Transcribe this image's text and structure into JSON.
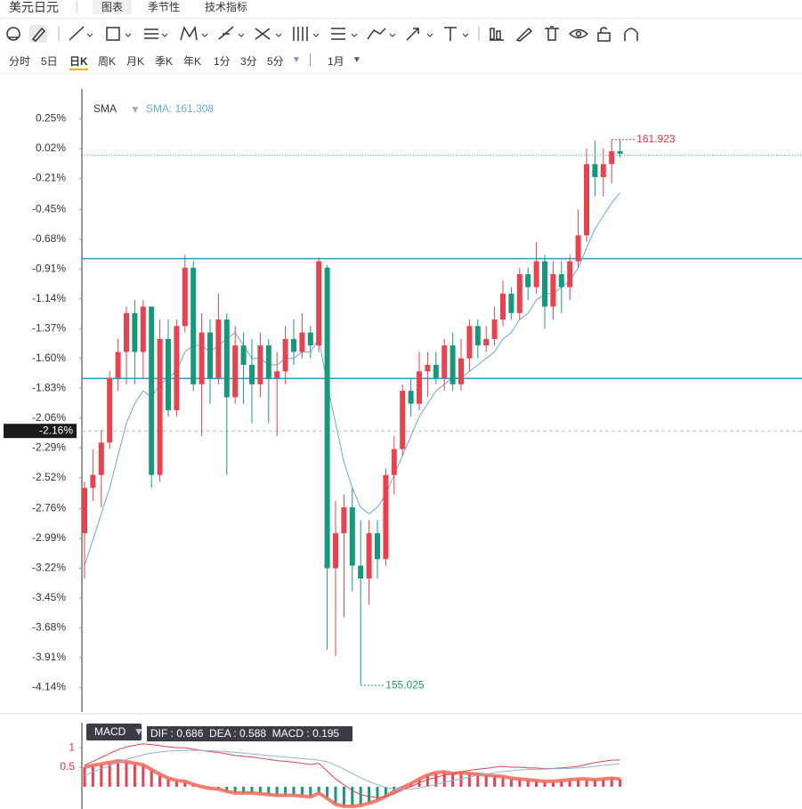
{
  "header": {
    "title": "美元日元",
    "tabs": [
      "图表",
      "季节性",
      "技术指标"
    ]
  },
  "periods": [
    "分时",
    "5日",
    "日K",
    "周K",
    "月K",
    "季K",
    "年K",
    "1分",
    "3分",
    "5分"
  ],
  "period_extra": "1月",
  "chart_data": [
    {
      "type": "candlestick",
      "legend_name": "SMA",
      "legend_value": "SMA: 161.308",
      "up_color": "#e8424e",
      "down_color": "#18987a",
      "open": [
        -2.95,
        -2.6,
        -2.5,
        -2.25,
        -1.75,
        -1.55,
        -1.25,
        -1.55,
        -1.2,
        -2.5,
        -1.45,
        -2.0,
        -1.35,
        -0.9,
        -1.8,
        -1.4,
        -1.75,
        -1.3,
        -1.9,
        -1.5,
        -1.65,
        -1.8,
        -1.5,
        -1.75,
        -1.7,
        -1.45,
        -1.55,
        -1.4,
        -1.5,
        -0.9,
        -3.22,
        -2.95,
        -2.75,
        -3.2,
        -3.3,
        -2.95,
        -3.15,
        -2.5,
        -2.3,
        -1.85,
        -1.95,
        -1.7,
        -1.65,
        -1.75,
        -1.5,
        -1.8,
        -1.6,
        -1.35,
        -1.5,
        -1.45,
        -1.3,
        -1.1,
        -1.25,
        -0.95,
        -1.05,
        -0.85,
        -1.2,
        -0.95,
        -1.05,
        -0.85,
        -0.65,
        -0.1,
        -0.2,
        -0.1,
        0.0
      ],
      "high": [
        -2.55,
        -2.3,
        -2.15,
        -1.7,
        -1.45,
        -1.2,
        -1.15,
        -1.15,
        -1.2,
        -1.3,
        -1.3,
        -1.3,
        -0.8,
        -0.85,
        -1.25,
        -1.3,
        -1.1,
        -1.25,
        -1.35,
        -1.4,
        -1.45,
        -1.4,
        -1.45,
        -1.55,
        -1.35,
        -1.3,
        -1.25,
        -1.35,
        -0.82,
        -0.88,
        -2.7,
        -2.65,
        -2.6,
        -2.85,
        -2.85,
        -2.85,
        -2.45,
        -2.2,
        -1.8,
        -1.75,
        -1.55,
        -1.55,
        -1.55,
        -1.45,
        -1.4,
        -1.45,
        -1.3,
        -1.3,
        -1.35,
        -1.2,
        -1.0,
        -1.05,
        -0.9,
        -0.9,
        -0.7,
        -0.8,
        -0.85,
        -0.85,
        -0.8,
        -0.45,
        0.02,
        0.08,
        0.02,
        0.09,
        0.09
      ],
      "low": [
        -3.3,
        -2.7,
        -2.75,
        -2.3,
        -1.85,
        -1.8,
        -1.8,
        -1.75,
        -2.6,
        -2.55,
        -2.05,
        -2.05,
        -1.4,
        -1.85,
        -2.2,
        -1.95,
        -1.8,
        -2.5,
        -1.95,
        -1.95,
        -2.1,
        -1.9,
        -2.1,
        -2.2,
        -1.8,
        -1.65,
        -1.6,
        -1.6,
        -1.55,
        -3.85,
        -3.9,
        -3.6,
        -3.4,
        -4.12,
        -3.5,
        -3.3,
        -3.2,
        -2.65,
        -2.35,
        -2.05,
        -2.0,
        -1.9,
        -1.8,
        -1.85,
        -1.85,
        -1.85,
        -1.7,
        -1.6,
        -1.55,
        -1.5,
        -1.35,
        -1.3,
        -1.3,
        -1.15,
        -1.1,
        -1.37,
        -1.3,
        -1.25,
        -1.15,
        -0.9,
        -0.7,
        -0.35,
        -0.35,
        -0.25,
        -0.05
      ],
      "close": [
        -2.6,
        -2.5,
        -2.25,
        -1.75,
        -1.55,
        -1.25,
        -1.55,
        -1.2,
        -2.5,
        -1.45,
        -2.0,
        -1.35,
        -0.9,
        -1.8,
        -1.4,
        -1.75,
        -1.3,
        -1.9,
        -1.5,
        -1.65,
        -1.8,
        -1.5,
        -1.75,
        -1.7,
        -1.45,
        -1.55,
        -1.4,
        -1.5,
        -0.85,
        -3.22,
        -2.95,
        -2.75,
        -3.2,
        -3.3,
        -2.95,
        -3.15,
        -2.5,
        -2.3,
        -1.85,
        -1.95,
        -1.7,
        -1.65,
        -1.75,
        -1.5,
        -1.8,
        -1.6,
        -1.35,
        -1.5,
        -1.45,
        -1.3,
        -1.1,
        -1.25,
        -0.95,
        -1.05,
        -0.85,
        -1.2,
        -0.95,
        -1.05,
        -0.85,
        -0.65,
        -0.1,
        -0.2,
        -0.1,
        0.0,
        -0.02
      ],
      "sma": {
        "color": "#6aa8e0",
        "values": [
          -3.2,
          -3.0,
          -2.8,
          -2.6,
          -2.35,
          -2.1,
          -1.95,
          -1.85,
          -1.9,
          -1.8,
          -1.75,
          -1.7,
          -1.55,
          -1.5,
          -1.5,
          -1.55,
          -1.5,
          -1.45,
          -1.4,
          -1.5,
          -1.6,
          -1.6,
          -1.65,
          -1.65,
          -1.6,
          -1.6,
          -1.55,
          -1.55,
          -1.45,
          -1.8,
          -2.1,
          -2.4,
          -2.6,
          -2.75,
          -2.8,
          -2.75,
          -2.65,
          -2.5,
          -2.35,
          -2.2,
          -2.05,
          -1.95,
          -1.85,
          -1.8,
          -1.75,
          -1.75,
          -1.7,
          -1.65,
          -1.6,
          -1.55,
          -1.45,
          -1.4,
          -1.3,
          -1.25,
          -1.15,
          -1.1,
          -1.1,
          -1.05,
          -1.0,
          -0.9,
          -0.75,
          -0.6,
          -0.5,
          -0.4,
          -0.32
        ]
      },
      "ylim": [
        -4.33,
        0.48
      ],
      "yticks": [
        {
          "value": 0.25,
          "label": "0.25%"
        },
        {
          "value": 0.02,
          "label": "0.02%"
        },
        {
          "value": -0.21,
          "label": "-0.21%"
        },
        {
          "value": -0.45,
          "label": "-0.45%"
        },
        {
          "value": -0.68,
          "label": "-0.68%"
        },
        {
          "value": -0.91,
          "label": "-0.91%"
        },
        {
          "value": -1.14,
          "label": "-1.14%"
        },
        {
          "value": -1.37,
          "label": "-1.37%"
        },
        {
          "value": -1.6,
          "label": "-1.60%"
        },
        {
          "value": -1.83,
          "label": "-1.83%"
        },
        {
          "value": -2.06,
          "label": "-2.06%"
        },
        {
          "value": -2.29,
          "label": "-2.29%"
        },
        {
          "value": -2.52,
          "label": "-2.52%"
        },
        {
          "value": -2.76,
          "label": "-2.76%"
        },
        {
          "value": -2.99,
          "label": "-2.99%"
        },
        {
          "value": -3.22,
          "label": "-3.22%"
        },
        {
          "value": -3.45,
          "label": "-3.45%"
        },
        {
          "value": -3.68,
          "label": "-3.68%"
        },
        {
          "value": -3.91,
          "label": "-3.91%"
        },
        {
          "value": -4.14,
          "label": "-4.14%"
        }
      ],
      "hlines": [
        {
          "value": -0.83,
          "color": "#1e9fd6"
        },
        {
          "value": -1.755,
          "color": "#1e9fd6"
        }
      ],
      "price_line": {
        "value": -0.03,
        "color": "#3a9a8a"
      },
      "crosshair": {
        "value": -2.16,
        "label": "-2.16%"
      },
      "max_marker": {
        "index": 63,
        "value": 0.09,
        "label": "161.923",
        "color": "#e0323c"
      },
      "min_marker": {
        "index": 33,
        "value": -4.125,
        "label": "155.025",
        "color": "#1f9a5a"
      }
    },
    {
      "type": "macd",
      "title": "MACD",
      "legend": "DIF : 0.686  DEA : 0.588  MACD : 0.195",
      "ylim": [
        -0.57,
        1.64
      ],
      "yticks": [
        1,
        0.5
      ],
      "dif": {
        "color": "#e8424e",
        "values": [
          0.55,
          0.65,
          0.75,
          0.85,
          0.95,
          1.02,
          1.06,
          1.1,
          1.08,
          1.05,
          1.02,
          1.0,
          1.0,
          0.96,
          0.93,
          0.9,
          0.88,
          0.84,
          0.8,
          0.78,
          0.76,
          0.73,
          0.7,
          0.67,
          0.65,
          0.63,
          0.6,
          0.57,
          0.6,
          0.4,
          0.2,
          0.05,
          -0.1,
          -0.2,
          -0.25,
          -0.28,
          -0.25,
          -0.18,
          -0.08,
          0.0,
          0.1,
          0.18,
          0.24,
          0.3,
          0.33,
          0.38,
          0.42,
          0.45,
          0.47,
          0.5,
          0.52,
          0.5,
          0.5,
          0.48,
          0.48,
          0.46,
          0.47,
          0.48,
          0.5,
          0.52,
          0.57,
          0.62,
          0.65,
          0.68,
          0.686
        ]
      },
      "dea": {
        "color": "#8fb2e0",
        "values": [
          0.3,
          0.38,
          0.46,
          0.54,
          0.62,
          0.7,
          0.76,
          0.82,
          0.86,
          0.89,
          0.91,
          0.92,
          0.93,
          0.93,
          0.93,
          0.92,
          0.91,
          0.9,
          0.88,
          0.86,
          0.84,
          0.82,
          0.8,
          0.78,
          0.76,
          0.74,
          0.72,
          0.7,
          0.68,
          0.64,
          0.55,
          0.45,
          0.34,
          0.23,
          0.13,
          0.05,
          -0.02,
          -0.06,
          -0.07,
          -0.06,
          -0.03,
          0.01,
          0.06,
          0.11,
          0.16,
          0.2,
          0.25,
          0.29,
          0.32,
          0.36,
          0.39,
          0.41,
          0.43,
          0.44,
          0.45,
          0.45,
          0.46,
          0.46,
          0.47,
          0.48,
          0.5,
          0.52,
          0.55,
          0.57,
          0.588
        ]
      },
      "hist": {
        "up_color": "#e8424e",
        "down_color": "#18987a",
        "line_color": "#f2705f",
        "values": [
          0.5,
          0.55,
          0.58,
          0.62,
          0.66,
          0.64,
          0.6,
          0.56,
          0.44,
          0.32,
          0.22,
          0.16,
          0.14,
          0.06,
          0.0,
          -0.04,
          -0.06,
          -0.12,
          -0.16,
          -0.16,
          -0.16,
          -0.18,
          -0.2,
          -0.22,
          -0.22,
          -0.22,
          -0.24,
          -0.26,
          -0.16,
          -0.3,
          -0.45,
          -0.5,
          -0.5,
          -0.48,
          -0.42,
          -0.35,
          -0.25,
          -0.12,
          -0.02,
          0.08,
          0.2,
          0.3,
          0.36,
          0.38,
          0.34,
          0.36,
          0.34,
          0.32,
          0.3,
          0.28,
          0.26,
          0.22,
          0.2,
          0.18,
          0.16,
          0.14,
          0.14,
          0.16,
          0.18,
          0.2,
          0.2,
          0.18,
          0.2,
          0.22,
          0.195
        ]
      }
    }
  ]
}
